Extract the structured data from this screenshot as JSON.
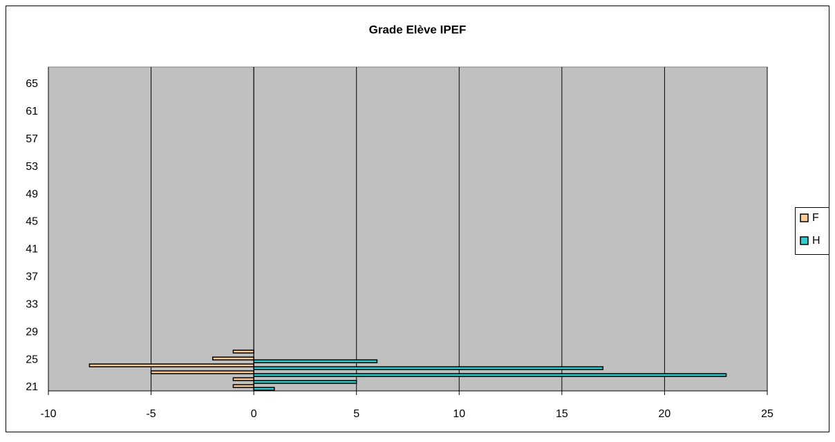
{
  "chart_data": {
    "type": "bar",
    "orientation": "horizontal",
    "title": "Grade Elève IPEF",
    "categories": [
      "21",
      null,
      null,
      null,
      "25",
      null,
      null,
      null,
      "29",
      null,
      null,
      null,
      "33",
      null,
      null,
      null,
      "37",
      null,
      null,
      null,
      "41",
      null,
      null,
      null,
      "45",
      null,
      null,
      null,
      "49",
      null,
      null,
      null,
      "53",
      null,
      null,
      null,
      "57",
      null,
      null,
      null,
      "61",
      null,
      null,
      null,
      "65",
      null,
      null
    ],
    "series": [
      {
        "name": "F",
        "color": "#ffcc99",
        "values": [
          -1,
          -1,
          -5,
          -8,
          -2,
          -1,
          null,
          null,
          null,
          null,
          null,
          null,
          null,
          null,
          null,
          null,
          null,
          null,
          null,
          null,
          null,
          null,
          null,
          null,
          null,
          null,
          null,
          null,
          null,
          null,
          null,
          null,
          null,
          null,
          null,
          null,
          null,
          null,
          null,
          null,
          null,
          null,
          null,
          null,
          null,
          null,
          null
        ]
      },
      {
        "name": "H",
        "color": "#33cccc",
        "values": [
          1,
          5,
          23,
          17,
          6,
          null,
          null,
          null,
          null,
          null,
          null,
          null,
          null,
          null,
          null,
          null,
          null,
          null,
          null,
          null,
          null,
          null,
          null,
          null,
          null,
          null,
          null,
          null,
          null,
          null,
          null,
          null,
          null,
          null,
          null,
          null,
          null,
          null,
          null,
          null,
          null,
          null,
          null,
          null,
          null,
          null,
          null
        ]
      }
    ],
    "xlim": [
      -10,
      25
    ],
    "xticks": [
      -10,
      -5,
      0,
      5,
      10,
      15,
      20,
      25
    ],
    "grid": true,
    "legend": "right"
  }
}
